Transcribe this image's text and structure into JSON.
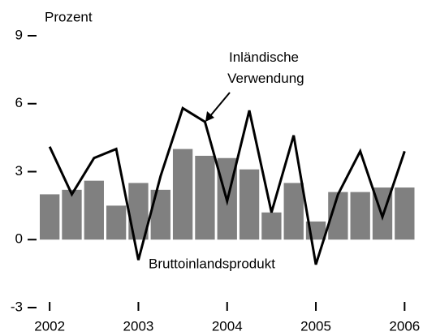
{
  "chart_data": {
    "type": "bar-line",
    "y_label": "Prozent",
    "categories": [
      "2002",
      null,
      null,
      null,
      "2003",
      null,
      null,
      null,
      "2004",
      null,
      null,
      null,
      "2005",
      null,
      null,
      null,
      "2006"
    ],
    "series": [
      {
        "name": "Bruttoinlandsprodukt",
        "type": "bar",
        "color": "#808080",
        "values": [
          2.0,
          2.2,
          2.6,
          1.5,
          2.5,
          2.2,
          4.0,
          3.7,
          3.6,
          3.1,
          1.2,
          2.5,
          0.8,
          2.1,
          2.1,
          2.3,
          2.3
        ]
      },
      {
        "name": "Inländische Verwendung",
        "type": "line",
        "color": "#000000",
        "values": [
          4.1,
          2.0,
          3.6,
          4.0,
          -0.9,
          2.8,
          5.8,
          5.2,
          1.7,
          5.7,
          1.2,
          4.6,
          -1.1,
          2.0,
          3.9,
          1.0,
          3.9
        ]
      }
    ],
    "ylim": [
      -3,
      9
    ],
    "yticks": [
      -3,
      0,
      3,
      6,
      9
    ]
  }
}
